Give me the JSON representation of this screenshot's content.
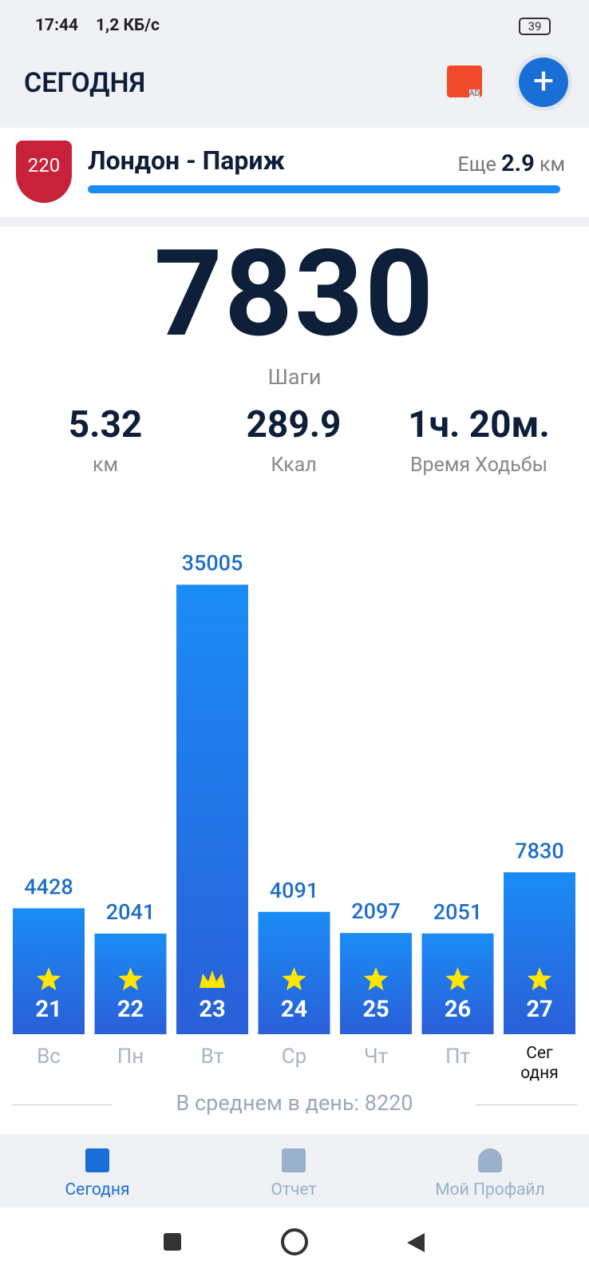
{
  "status_bar": {
    "time": "17:44",
    "speed": "1,2 КБ/с",
    "battery": "39"
  },
  "header": {
    "title": "СЕГОДНЯ",
    "ad": "AD"
  },
  "challenge": {
    "badge": "220",
    "name": "Лондон - Париж",
    "remaining_prefix": "Еще",
    "remaining": 2.9,
    "unit": "км"
  },
  "steps": {
    "value": 7830,
    "label": "Шаги"
  },
  "stats": [
    {
      "value": 5.32,
      "label": "км"
    },
    {
      "value": 289.9,
      "label": "Ккал"
    },
    {
      "value": "1ч. 20м.",
      "label": "Время Ходьбы"
    }
  ],
  "chart_data": {
    "type": "bar",
    "categories": [
      "Вс",
      "Пн",
      "Вт",
      "Ср",
      "Чт",
      "Пт",
      "Сег\nодня"
    ],
    "dates": [
      21,
      22,
      23,
      24,
      25,
      26,
      27
    ],
    "values": [
      4428,
      2041,
      35005,
      4091,
      2097,
      2051,
      7830
    ],
    "color": "#1a8cf5"
  },
  "average": "В среднем в день: 8220",
  "nav": {
    "items": [
      "Сегодня",
      "Отчет",
      "Мой Профайл"
    ],
    "active": 0
  }
}
